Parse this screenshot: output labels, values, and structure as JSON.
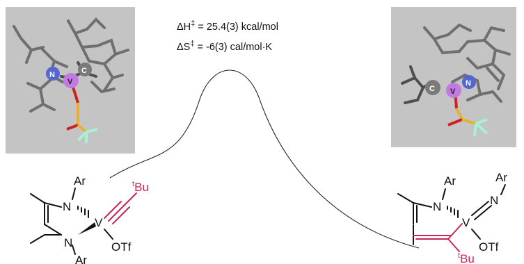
{
  "thermo": {
    "enthalpy": {
      "symbol": "ΔH",
      "sup": "‡",
      "value": " = 25.4(3) kcal/mol"
    },
    "entropy": {
      "symbol": "ΔS",
      "sup": "‡",
      "value": " = -6(3) cal/mol·K"
    }
  },
  "reactant": {
    "ar_top": "Ar",
    "n_top": "N",
    "v": "V",
    "n_bottom": "N",
    "ar_bottom": "Ar",
    "otf": "OTf",
    "tbu_sup": "t",
    "tbu_main": "Bu"
  },
  "product": {
    "ar_top": "Ar",
    "n_ring": "N",
    "v": "V",
    "n_imido": "N",
    "ar_imido": "Ar",
    "otf": "OTf",
    "tbu_sup": "t",
    "tbu_main": "Bu"
  },
  "crystal_left": {
    "n": "N",
    "v": "V",
    "c": "C"
  },
  "crystal_right": {
    "c": "C",
    "v": "V",
    "n": "N"
  },
  "colors": {
    "alkyne": "#c8245a",
    "vanadium": "#c07ae0",
    "nitrogen": "#5566cc",
    "oxygen": "#cc2222",
    "sulfur": "#e8b030",
    "fluorine": "#a8f0d8",
    "panel": "#c4c4c4"
  }
}
